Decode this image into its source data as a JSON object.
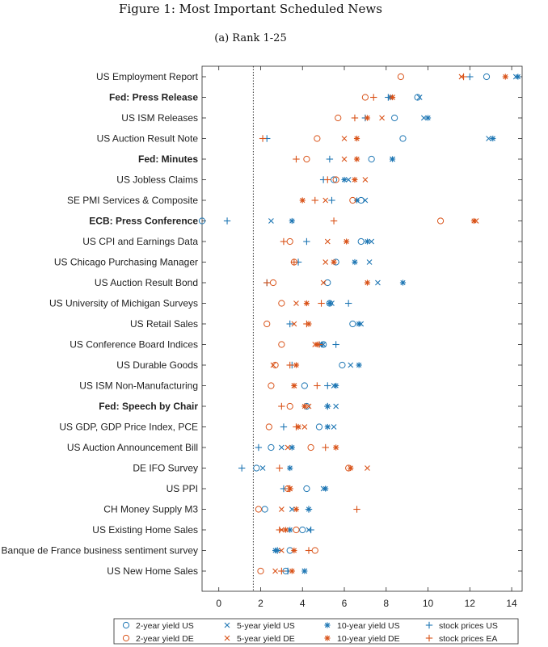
{
  "figure_title": "Figure 1: Most Important Scheduled News",
  "chart_data": {
    "type": "scatter",
    "panel_title": "(a) Rank 1-25",
    "xlim": [
      -0.8,
      14.5
    ],
    "xticks": [
      0,
      2,
      4,
      6,
      8,
      10,
      12,
      14
    ],
    "reference_line_x": 1.65,
    "grid": false,
    "legend_position": "bottom-right",
    "categories": [
      "US Employment Report",
      "Fed: Press Release",
      "US ISM Releases",
      "US Auction Result Note",
      "Fed: Minutes",
      "US Jobless Claims",
      "SE PMI Services & Composite",
      "ECB: Press Conference",
      "US CPI and Earnings Data",
      "US Chicago Purchasing Manager",
      "US Auction Result Bond",
      "US University of Michigan Surveys",
      "US Retail Sales",
      "US Conference Board Indices",
      "US Durable Goods",
      "US ISM Non-Manufacturing",
      "Fed: Speech by Chair",
      "US GDP, GDP Price Index, PCE",
      "US Auction Announcement Bill",
      "DE IFO Survey",
      "US PPI",
      "CH Money Supply M3",
      "US Existing Home Sales",
      "Banque de France business sentiment survey",
      "US New Home Sales"
    ],
    "bold_categories": [
      "Fed: Press Release",
      "Fed: Minutes",
      "ECB: Press Conference",
      "Fed: Speech by Chair"
    ],
    "series": [
      {
        "name": "2-year yield US",
        "color": "#1f77b4",
        "marker": "circle",
        "values": [
          12.8,
          9.5,
          8.4,
          8.8,
          7.3,
          5.5,
          6.8,
          -0.8,
          6.8,
          5.6,
          5.2,
          5.3,
          6.4,
          5.0,
          5.9,
          4.1,
          4.2,
          4.8,
          2.5,
          1.8,
          4.2,
          2.2,
          4.0,
          3.4,
          3.2
        ]
      },
      {
        "name": "5-year yield US",
        "color": "#1f77b4",
        "marker": "x",
        "values": [
          14.2,
          9.6,
          9.8,
          12.9,
          8.3,
          6.2,
          7.0,
          2.5,
          7.3,
          7.2,
          7.6,
          5.4,
          6.8,
          5.0,
          6.3,
          5.5,
          5.6,
          5.5,
          3.0,
          2.1,
          5.0,
          3.5,
          4.3,
          2.8,
          4.1
        ]
      },
      {
        "name": "10-year yield US",
        "color": "#1f77b4",
        "marker": "star",
        "values": [
          14.3,
          8.2,
          10.0,
          13.1,
          8.3,
          6.0,
          6.6,
          3.5,
          7.1,
          6.5,
          8.8,
          5.3,
          6.7,
          4.9,
          6.7,
          5.6,
          5.2,
          5.2,
          3.5,
          3.4,
          5.1,
          4.3,
          3.4,
          2.7,
          4.1
        ]
      },
      {
        "name": "stock prices US",
        "color": "#1f77b4",
        "marker": "plus",
        "values": [
          12.0,
          8.1,
          7.0,
          2.3,
          5.3,
          5.0,
          5.4,
          0.4,
          4.2,
          3.8,
          2.3,
          6.2,
          3.4,
          5.6,
          3.5,
          5.2,
          5.2,
          3.1,
          1.9,
          1.1,
          3.1,
          4.3,
          4.4,
          2.8,
          3.3
        ]
      },
      {
        "name": "2-year yield DE",
        "color": "#d95319",
        "marker": "circle",
        "values": [
          8.7,
          7.0,
          5.7,
          4.7,
          4.2,
          5.6,
          6.4,
          10.6,
          3.4,
          3.6,
          2.6,
          3.0,
          2.3,
          3.0,
          2.7,
          2.5,
          3.4,
          2.4,
          4.4,
          6.2,
          3.3,
          1.9,
          3.7,
          4.6,
          2.0
        ]
      },
      {
        "name": "5-year yield DE",
        "color": "#d95319",
        "marker": "x",
        "values": [
          11.6,
          8.3,
          7.8,
          6.0,
          6.0,
          7.0,
          5.1,
          12.3,
          5.2,
          5.1,
          5.0,
          3.7,
          3.6,
          4.6,
          2.6,
          3.6,
          4.3,
          4.1,
          3.3,
          7.1,
          3.4,
          3.0,
          3.0,
          3.0,
          2.7
        ]
      },
      {
        "name": "10-year yield DE",
        "color": "#d95319",
        "marker": "star",
        "values": [
          13.7,
          8.3,
          7.1,
          6.6,
          6.6,
          6.5,
          4.0,
          12.2,
          6.1,
          5.5,
          7.1,
          4.2,
          4.3,
          4.7,
          3.7,
          3.6,
          4.1,
          3.8,
          5.6,
          6.3,
          3.4,
          3.7,
          3.2,
          3.6,
          3.5
        ]
      },
      {
        "name": "stock prices EA",
        "color": "#d95319",
        "marker": "plus",
        "values": [
          11.7,
          7.4,
          6.5,
          2.1,
          3.7,
          5.2,
          4.6,
          5.5,
          3.1,
          3.6,
          2.3,
          4.9,
          4.2,
          4.8,
          3.4,
          4.7,
          3.0,
          3.7,
          5.1,
          2.9,
          3.4,
          6.6,
          2.9,
          4.3,
          3.0
        ]
      }
    ]
  }
}
